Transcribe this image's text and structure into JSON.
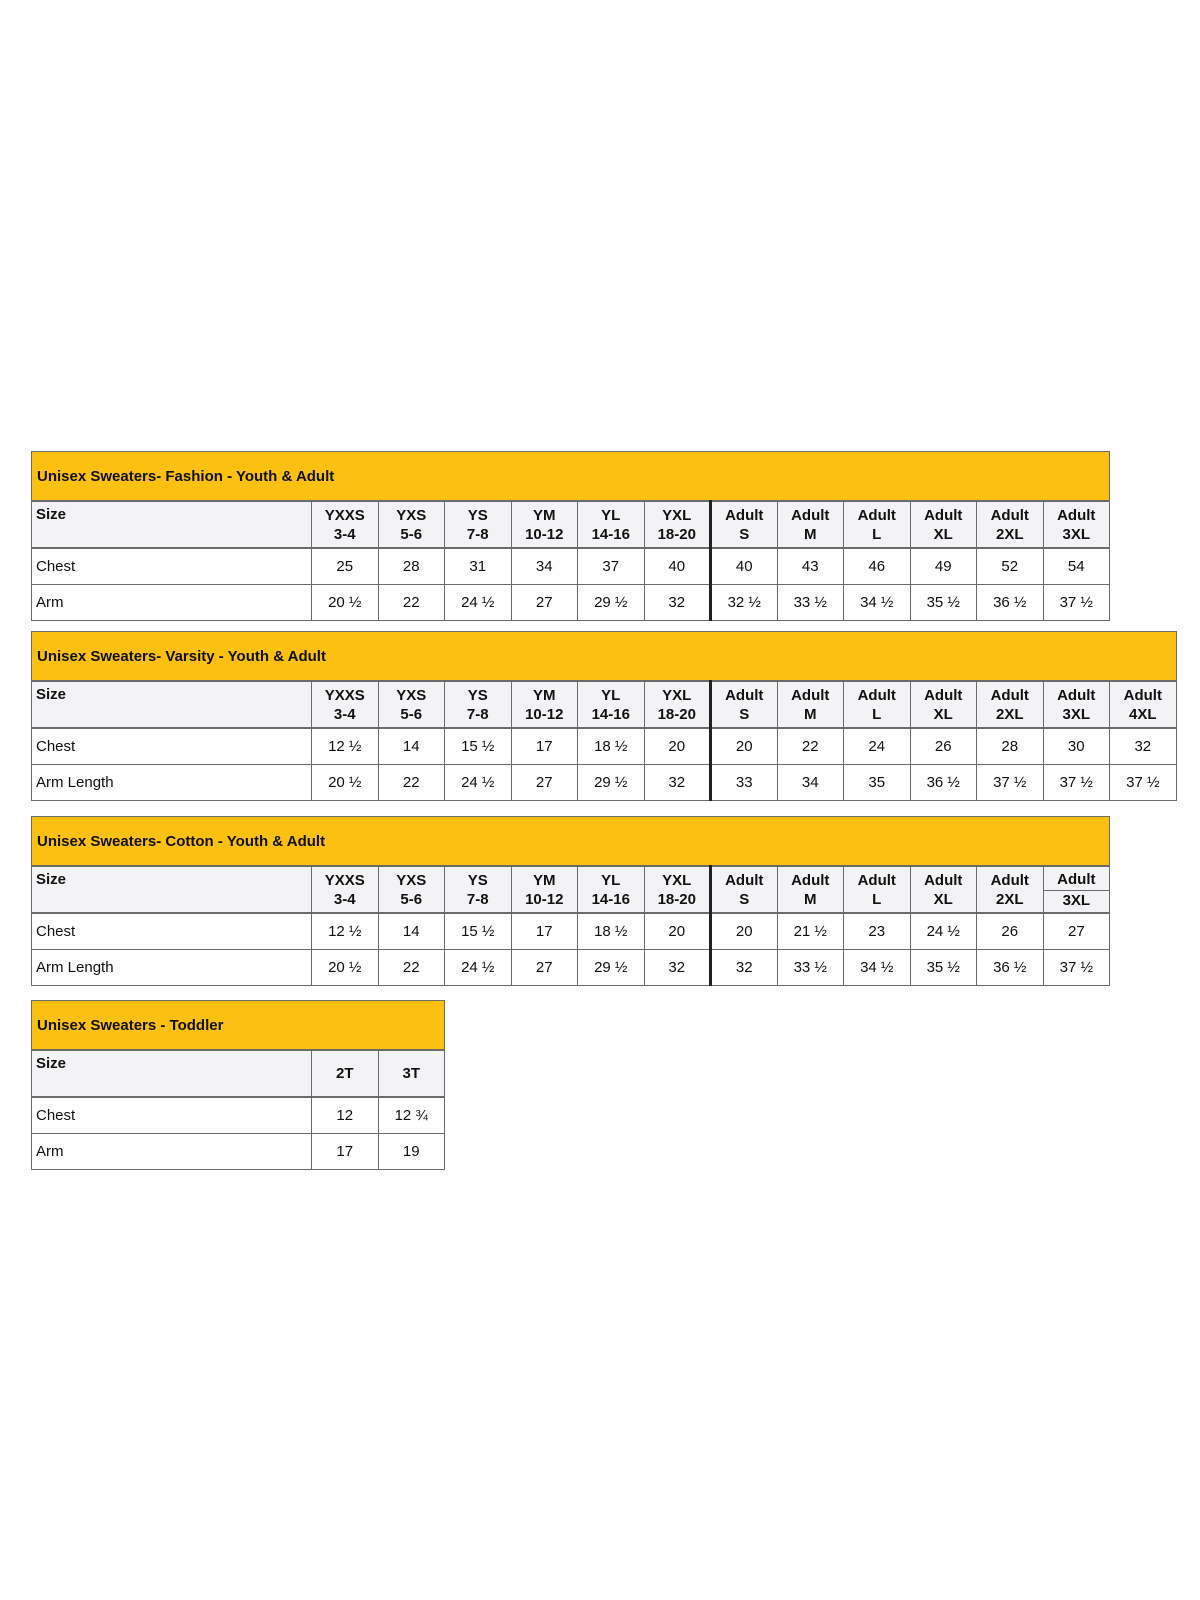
{
  "tables": [
    {
      "title": "Unisex Sweaters- Fashion - Youth & Adult",
      "size_label": "Size",
      "sizes": [
        [
          "YXXS",
          "3-4"
        ],
        [
          "YXS",
          "5-6"
        ],
        [
          "YS",
          "7-8"
        ],
        [
          "YM",
          "10-12"
        ],
        [
          "YL",
          "14-16"
        ],
        [
          "YXL",
          "18-20"
        ],
        [
          "Adult",
          "S"
        ],
        [
          "Adult",
          "M"
        ],
        [
          "Adult",
          "L"
        ],
        [
          "Adult",
          "XL"
        ],
        [
          "Adult",
          "2XL"
        ],
        [
          "Adult",
          "3XL"
        ]
      ],
      "rows": [
        {
          "label": "Chest",
          "values": [
            "25",
            "28",
            "31",
            "34",
            "37",
            "40",
            "40",
            "43",
            "46",
            "49",
            "52",
            "54"
          ]
        },
        {
          "label": "Arm",
          "values": [
            "20 ½",
            "22",
            "24 ½",
            "27",
            "29 ½",
            "32",
            "32 ½",
            "33 ½",
            "34 ½",
            "35 ½",
            "36 ½",
            "37 ½"
          ]
        }
      ]
    },
    {
      "title": "Unisex Sweaters- Varsity - Youth & Adult",
      "size_label": "Size",
      "sizes": [
        [
          "YXXS",
          "3-4"
        ],
        [
          "YXS",
          "5-6"
        ],
        [
          "YS",
          "7-8"
        ],
        [
          "YM",
          "10-12"
        ],
        [
          "YL",
          "14-16"
        ],
        [
          "YXL",
          "18-20"
        ],
        [
          "Adult",
          "S"
        ],
        [
          "Adult",
          "M"
        ],
        [
          "Adult",
          "L"
        ],
        [
          "Adult",
          "XL"
        ],
        [
          "Adult",
          "2XL"
        ],
        [
          "Adult",
          "3XL"
        ],
        [
          "Adult",
          "4XL"
        ]
      ],
      "rows": [
        {
          "label": "Chest",
          "values": [
            "12 ½",
            "14",
            "15 ½",
            "17",
            "18 ½",
            "20",
            "20",
            "22",
            "24",
            "26",
            "28",
            "30",
            "32"
          ]
        },
        {
          "label": "Arm Length",
          "values": [
            "20 ½",
            "22",
            "24 ½",
            "27",
            "29 ½",
            "32",
            "33",
            "34",
            "35",
            "36 ½",
            "37 ½",
            "37 ½",
            "37 ½"
          ]
        }
      ]
    },
    {
      "title": "Unisex Sweaters- Cotton - Youth & Adult",
      "size_label": "Size",
      "sizes": [
        [
          "YXXS",
          "3-4"
        ],
        [
          "YXS",
          "5-6"
        ],
        [
          "YS",
          "7-8"
        ],
        [
          "YM",
          "10-12"
        ],
        [
          "YL",
          "14-16"
        ],
        [
          "YXL",
          "18-20"
        ],
        [
          "Adult",
          "S"
        ],
        [
          "Adult",
          "M"
        ],
        [
          "Adult",
          "L"
        ],
        [
          "Adult",
          "XL"
        ],
        [
          "Adult",
          "2XL"
        ],
        [
          "Adult",
          "3XL"
        ]
      ],
      "rows": [
        {
          "label": "Chest",
          "values": [
            "12 ½",
            "14",
            "15 ½",
            "17",
            "18 ½",
            "20",
            "20",
            "21 ½",
            "23",
            "24 ½",
            "26",
            "27"
          ]
        },
        {
          "label": "Arm Length",
          "values": [
            "20 ½",
            "22",
            "24 ½",
            "27",
            "29 ½",
            "32",
            "32",
            "33 ½",
            "34 ½",
            "35 ½",
            "36 ½",
            "37 ½"
          ]
        }
      ]
    },
    {
      "title": "Unisex Sweaters - Toddler",
      "size_label": "Size",
      "sizes": [
        [
          "2T"
        ],
        [
          "3T"
        ]
      ],
      "rows": [
        {
          "label": "Chest",
          "values": [
            "12",
            "12 ¾"
          ]
        },
        {
          "label": "Arm",
          "values": [
            "17",
            "19"
          ]
        }
      ]
    }
  ],
  "colors": {
    "header_band": "#fcc010",
    "size_row": "#f3f3f5",
    "border": "#6b6b6b"
  }
}
